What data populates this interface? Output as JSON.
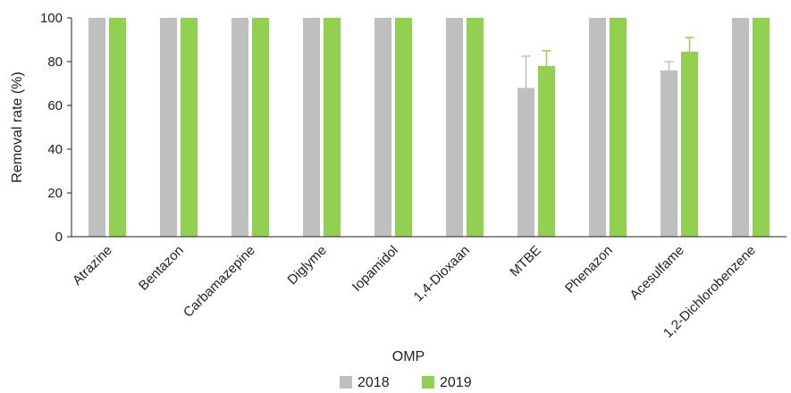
{
  "chart_data": {
    "type": "bar",
    "title": "",
    "xlabel": "OMP",
    "ylabel": "Removal rate (%)",
    "ylim": [
      0,
      100
    ],
    "yticks": [
      0,
      20,
      40,
      60,
      80,
      100
    ],
    "grid": false,
    "legend_position": "bottom-center",
    "categories": [
      "Atrazine",
      "Bentazon",
      "Carbamazepine",
      "Diglyme",
      "Iopamidol",
      "1,4-Dioxaan",
      "MTBE",
      "Phenazon",
      "Acesulfame",
      "1,2-Dichlorobenzene"
    ],
    "series": [
      {
        "name": "2018",
        "color": "#bfbfbf",
        "error_color": "#bfbfbf",
        "values": [
          100,
          100,
          100,
          100,
          100,
          100,
          68,
          100,
          76,
          100
        ],
        "error_upper": [
          0,
          0,
          0,
          0,
          0,
          0,
          14.5,
          0,
          4,
          0
        ]
      },
      {
        "name": "2019",
        "color": "#92d050",
        "error_color": "#92d050",
        "values": [
          100,
          100,
          100,
          100,
          100,
          100,
          78,
          100,
          84.5,
          100
        ],
        "error_upper": [
          0,
          0,
          0,
          0,
          0,
          0,
          7,
          0,
          6.5,
          0
        ]
      }
    ]
  }
}
